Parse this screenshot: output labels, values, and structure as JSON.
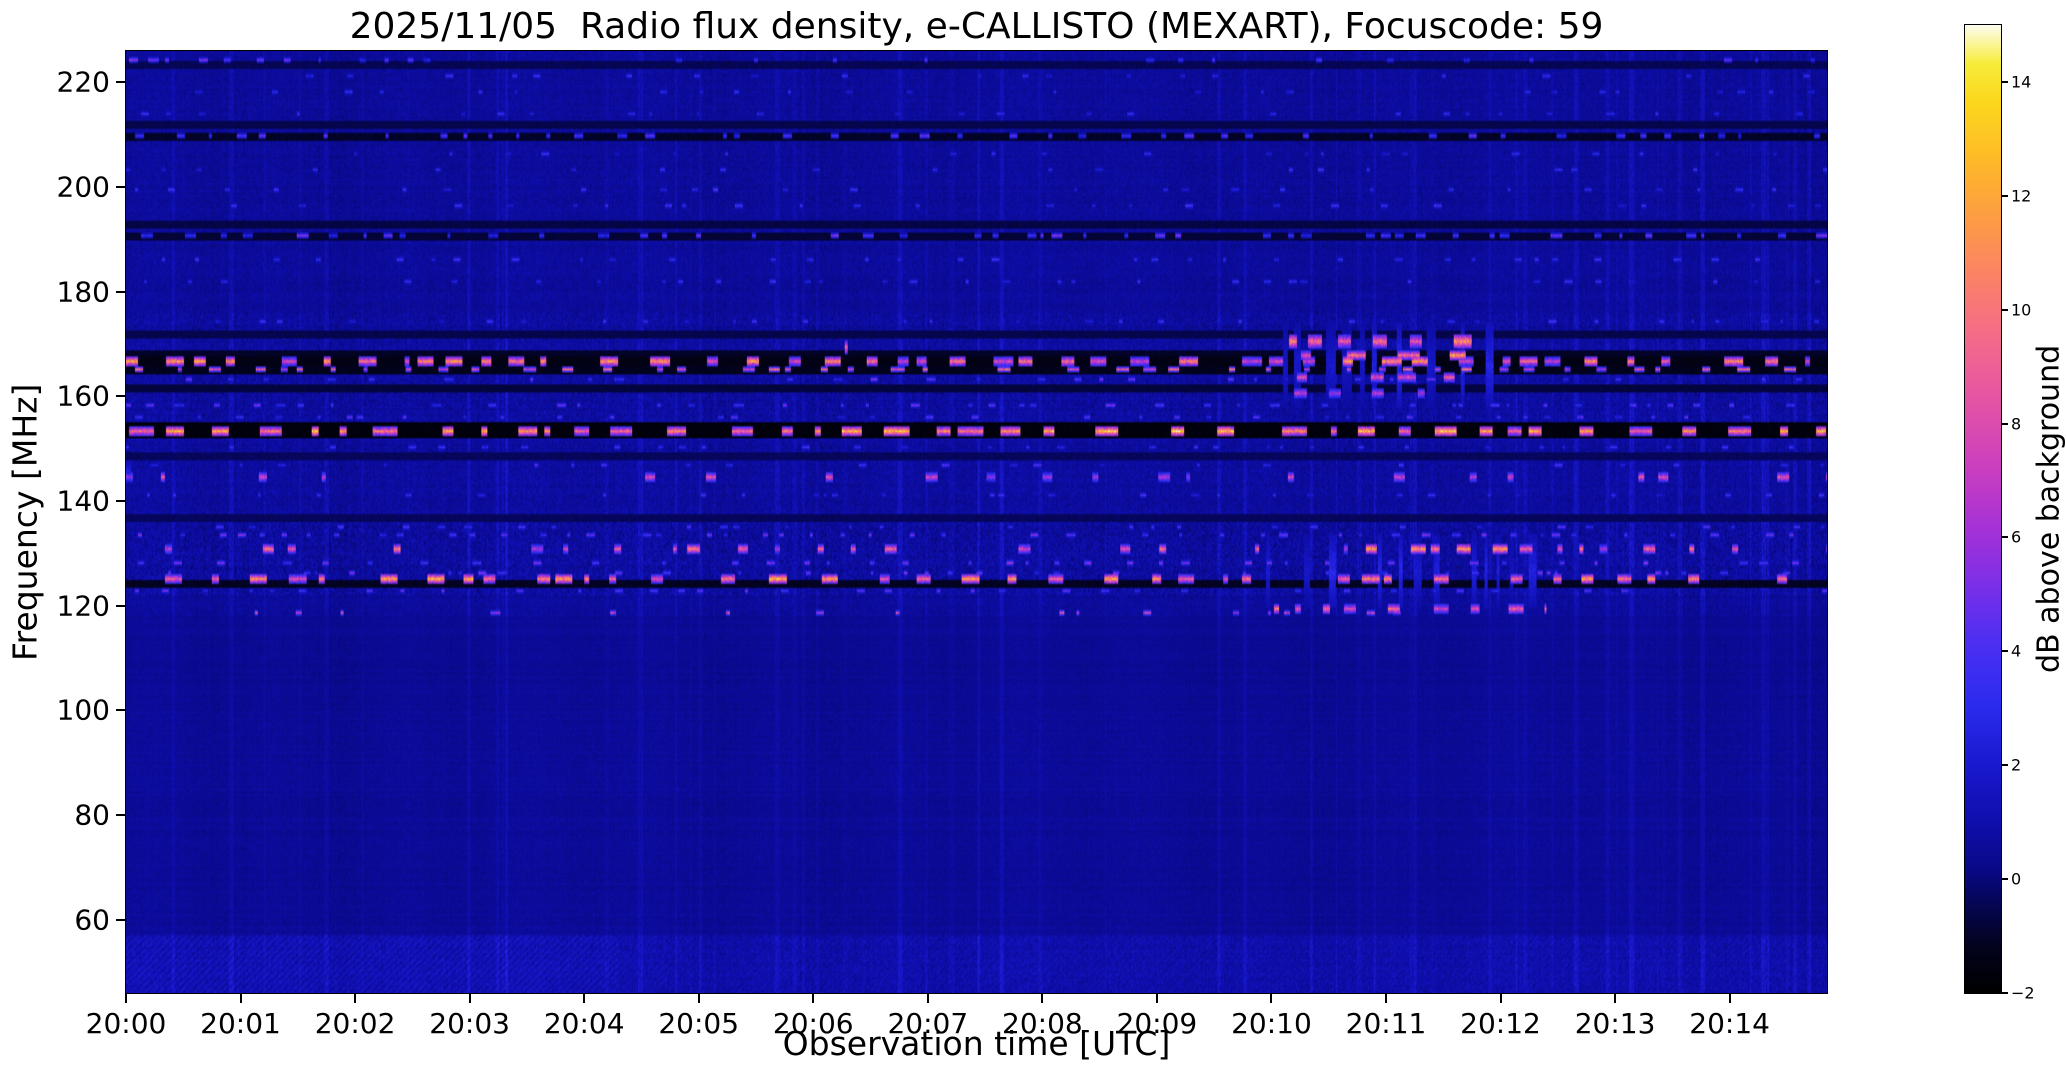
{
  "chart_data": {
    "type": "heatmap",
    "title": "2025/11/05  Radio flux density, e-CALLISTO (MEXART), Focuscode: 59",
    "xlabel": "Observation time [UTC]",
    "ylabel": "Frequency [MHz]",
    "x_range_minutes": [
      0,
      14.85
    ],
    "y_range_mhz": [
      46,
      226
    ],
    "x_ticks": [
      {
        "minute": 0,
        "label": "20:00"
      },
      {
        "minute": 1,
        "label": "20:01"
      },
      {
        "minute": 2,
        "label": "20:02"
      },
      {
        "minute": 3,
        "label": "20:03"
      },
      {
        "minute": 4,
        "label": "20:04"
      },
      {
        "minute": 5,
        "label": "20:05"
      },
      {
        "minute": 6,
        "label": "20:06"
      },
      {
        "minute": 7,
        "label": "20:07"
      },
      {
        "minute": 8,
        "label": "20:08"
      },
      {
        "minute": 9,
        "label": "20:09"
      },
      {
        "minute": 10,
        "label": "20:10"
      },
      {
        "minute": 11,
        "label": "20:11"
      },
      {
        "minute": 12,
        "label": "20:12"
      },
      {
        "minute": 13,
        "label": "20:13"
      },
      {
        "minute": 14,
        "label": "20:14"
      }
    ],
    "y_ticks": [
      {
        "mhz": 60,
        "label": "60"
      },
      {
        "mhz": 80,
        "label": "80"
      },
      {
        "mhz": 100,
        "label": "100"
      },
      {
        "mhz": 120,
        "label": "120"
      },
      {
        "mhz": 140,
        "label": "140"
      },
      {
        "mhz": 160,
        "label": "160"
      },
      {
        "mhz": 180,
        "label": "180"
      },
      {
        "mhz": 200,
        "label": "200"
      },
      {
        "mhz": 220,
        "label": "220"
      }
    ],
    "colorbar": {
      "label": "dB above background",
      "range": [
        -2,
        15
      ],
      "ticks": [
        {
          "value": 14,
          "label": "14"
        },
        {
          "value": 12,
          "label": "12"
        },
        {
          "value": 10,
          "label": "10"
        },
        {
          "value": 8,
          "label": "8"
        },
        {
          "value": 6,
          "label": "6"
        },
        {
          "value": 4,
          "label": "4"
        },
        {
          "value": 2,
          "label": "2"
        },
        {
          "value": 0,
          "label": "0"
        },
        {
          "value": -2,
          "label": "−2"
        }
      ],
      "colormap": [
        {
          "v": 0.0,
          "c": "#000000"
        },
        {
          "v": 0.05,
          "c": "#03031f"
        },
        {
          "v": 0.1,
          "c": "#06065e"
        },
        {
          "v": 0.13,
          "c": "#09098a"
        },
        {
          "v": 0.18,
          "c": "#0f0fae"
        },
        {
          "v": 0.24,
          "c": "#1a1ad2"
        },
        {
          "v": 0.3,
          "c": "#2c2cee"
        },
        {
          "v": 0.36,
          "c": "#4b2ff2"
        },
        {
          "v": 0.42,
          "c": "#7a2fe8"
        },
        {
          "v": 0.48,
          "c": "#a531d6"
        },
        {
          "v": 0.54,
          "c": "#c93ec0"
        },
        {
          "v": 0.61,
          "c": "#e453a5"
        },
        {
          "v": 0.68,
          "c": "#f56b88"
        },
        {
          "v": 0.74,
          "c": "#fb8266"
        },
        {
          "v": 0.8,
          "c": "#fd9c44"
        },
        {
          "v": 0.86,
          "c": "#feb928"
        },
        {
          "v": 0.92,
          "c": "#fbd71c"
        },
        {
          "v": 0.96,
          "c": "#f7ec3a"
        },
        {
          "v": 1.0,
          "c": "#fdfdf0"
        }
      ]
    },
    "render": {
      "seed": 20251105,
      "background": {
        "mean": 0.5,
        "noise": 0.42
      },
      "column_streaks": {
        "base": 0.22,
        "cluster_prob": 0.045,
        "cluster_amp": [
          0.35,
          1.1
        ]
      },
      "bands": [
        {
          "f": [
            46,
            57
          ],
          "boost": 0.25,
          "noise": 1.15,
          "streak": 0.9
        },
        {
          "f": [
            57,
            100
          ],
          "boost": -0.05,
          "noise": 0.6,
          "streak": 0.55
        },
        {
          "f": [
            100,
            118
          ],
          "boost": -0.1,
          "noise": 0.5,
          "streak": 0.5
        },
        {
          "f": [
            118,
            122
          ],
          "boost": 0.0,
          "noise": 0.8,
          "streak": 0.8
        },
        {
          "f": [
            122,
            136
          ],
          "boost": 0.12,
          "noise": 1.55,
          "streak": 1.0
        },
        {
          "f": [
            136,
            153
          ],
          "boost": 0.05,
          "noise": 1.05,
          "streak": 1.0
        },
        {
          "f": [
            153,
            176
          ],
          "boost": 0.08,
          "noise": 1.25,
          "streak": 1.0
        },
        {
          "f": [
            176,
            226
          ],
          "boost": 0.0,
          "noise": 0.85,
          "streak": 0.75
        }
      ],
      "bottom_band": {
        "f_max": 57,
        "amp": 0.75,
        "strong_until_min": 4.3,
        "late_level": 0.35
      },
      "dark_lines": [
        {
          "f": 153.6,
          "hw": 1.1,
          "v": -1.8
        },
        {
          "f": 166.9,
          "hw": 0.5,
          "v": -1.6
        },
        {
          "f": 165.3,
          "hw": 0.4,
          "v": -1.4
        },
        {
          "f": 168.4,
          "hw": 0.3,
          "v": -1.2
        },
        {
          "f": 161.8,
          "hw": 0.35,
          "v": -0.9
        },
        {
          "f": 171.9,
          "hw": 0.3,
          "v": -0.7
        },
        {
          "f": 124.3,
          "hw": 0.45,
          "v": -1.3
        },
        {
          "f": 137.0,
          "hw": 0.3,
          "v": -0.5
        },
        {
          "f": 148.9,
          "hw": 0.25,
          "v": -0.5
        },
        {
          "f": 190.8,
          "hw": 0.4,
          "v": -1.0
        },
        {
          "f": 193.2,
          "hw": 0.35,
          "v": -0.8
        },
        {
          "f": 209.8,
          "hw": 0.5,
          "v": -1.2
        },
        {
          "f": 211.9,
          "hw": 0.3,
          "v": -0.7
        },
        {
          "f": 223.4,
          "hw": 0.3,
          "v": -0.6
        }
      ],
      "burst_lines": [
        {
          "f": 153.6,
          "hw": 0.9,
          "density": 0.3,
          "len": [
            6,
            26
          ],
          "amp": [
            8.5,
            13.5
          ]
        },
        {
          "f": 166.9,
          "hw": 0.7,
          "density": 0.28,
          "len": [
            4,
            20
          ],
          "amp": [
            7,
            12
          ]
        },
        {
          "f": 165.4,
          "hw": 0.5,
          "density": 0.18,
          "len": [
            4,
            14
          ],
          "amp": [
            6,
            10
          ]
        },
        {
          "f": 170.8,
          "hw": 1.0,
          "density": 0.55,
          "len": [
            8,
            26
          ],
          "amp": [
            8,
            13
          ],
          "t": [
            10.15,
            11.8
          ]
        },
        {
          "f": 168.2,
          "hw": 0.9,
          "density": 0.5,
          "len": [
            8,
            24
          ],
          "amp": [
            8,
            13
          ],
          "t": [
            10.15,
            11.8
          ]
        },
        {
          "f": 163.8,
          "hw": 0.8,
          "density": 0.45,
          "len": [
            6,
            20
          ],
          "amp": [
            7.5,
            12
          ],
          "t": [
            10.2,
            11.6
          ]
        },
        {
          "f": 160.9,
          "hw": 0.6,
          "density": 0.3,
          "len": [
            5,
            14
          ],
          "amp": [
            6,
            10
          ],
          "t": [
            10.2,
            11.5
          ]
        },
        {
          "f": 166.0,
          "hw": 8.0,
          "density": 0.6,
          "len": [
            4,
            10
          ],
          "amp": [
            1.5,
            3.2
          ],
          "t": [
            10.1,
            12.0
          ]
        },
        {
          "f": 169.5,
          "hw": 1.2,
          "density": 0.9,
          "len": [
            3,
            6
          ],
          "amp": [
            9,
            13
          ],
          "t": [
            6.25,
            6.45
          ]
        },
        {
          "f": 125.2,
          "hw": 0.7,
          "density": 0.1,
          "len": [
            5,
            18
          ],
          "amp": [
            8,
            12.5
          ]
        },
        {
          "f": 131.0,
          "hw": 0.6,
          "density": 0.07,
          "len": [
            4,
            14
          ],
          "amp": [
            6,
            11
          ]
        },
        {
          "f": 131.2,
          "hw": 0.7,
          "density": 0.35,
          "len": [
            6,
            18
          ],
          "amp": [
            8,
            12
          ],
          "t": [
            10.8,
            12.4
          ]
        },
        {
          "f": 127.0,
          "hw": 7.0,
          "density": 0.4,
          "len": [
            3,
            8
          ],
          "amp": [
            1.5,
            3
          ],
          "t": [
            9.9,
            12.4
          ]
        },
        {
          "f": 119.6,
          "hw": 0.6,
          "density": 0.22,
          "len": [
            5,
            16
          ],
          "amp": [
            7,
            11
          ],
          "t": [
            10.0,
            12.4
          ]
        },
        {
          "f": 118.9,
          "hw": 0.5,
          "density": 0.02,
          "len": [
            3,
            10
          ],
          "amp": [
            5,
            9
          ]
        },
        {
          "f": 144.8,
          "hw": 0.6,
          "density": 0.05,
          "len": [
            4,
            12
          ],
          "amp": [
            5.5,
            9
          ]
        },
        {
          "f": 146.0,
          "hw": 2.0,
          "density": 0.8,
          "len": [
            3,
            8
          ],
          "amp": [
            2.5,
            4.5
          ],
          "t": [
            0,
            0.18
          ]
        },
        {
          "f": 128.3,
          "hw": 0.5,
          "density": 0.12,
          "len": [
            3,
            9
          ],
          "amp": [
            3,
            6
          ]
        },
        {
          "f": 133.8,
          "hw": 0.4,
          "density": 0.12,
          "len": [
            3,
            9
          ],
          "amp": [
            2.5,
            5.5
          ]
        },
        {
          "f": 126.6,
          "hw": 0.4,
          "density": 0.1,
          "len": [
            3,
            8
          ],
          "amp": [
            2.5,
            5.5
          ]
        },
        {
          "f": 123.1,
          "hw": 0.4,
          "density": 0.1,
          "len": [
            3,
            8
          ],
          "amp": [
            2.5,
            5
          ]
        },
        {
          "f": 135.3,
          "hw": 0.4,
          "density": 0.08,
          "len": [
            3,
            8
          ],
          "amp": [
            2,
            4.5
          ]
        },
        {
          "f": 158.5,
          "hw": 0.5,
          "density": 0.15,
          "len": [
            3,
            10
          ],
          "amp": [
            2.5,
            5
          ]
        },
        {
          "f": 156.2,
          "hw": 0.4,
          "density": 0.12,
          "len": [
            3,
            8
          ],
          "amp": [
            2,
            4.5
          ]
        },
        {
          "f": 163.5,
          "hw": 0.4,
          "density": 0.1,
          "len": [
            3,
            10
          ],
          "amp": [
            2.5,
            5
          ]
        },
        {
          "f": 174.5,
          "hw": 0.4,
          "density": 0.08,
          "len": [
            3,
            8
          ],
          "amp": [
            2,
            4
          ]
        },
        {
          "f": 141.5,
          "hw": 0.4,
          "density": 0.08,
          "len": [
            3,
            8
          ],
          "amp": [
            2,
            4
          ]
        },
        {
          "f": 147.2,
          "hw": 0.4,
          "density": 0.07,
          "len": [
            3,
            8
          ],
          "amp": [
            2,
            4
          ]
        },
        {
          "f": 150.4,
          "hw": 0.4,
          "density": 0.06,
          "len": [
            3,
            8
          ],
          "amp": [
            2,
            4
          ]
        },
        {
          "f": 191.0,
          "hw": 0.5,
          "density": 0.2,
          "len": [
            3,
            12
          ],
          "amp": [
            2.5,
            5.5
          ]
        },
        {
          "f": 209.9,
          "hw": 0.5,
          "density": 0.16,
          "len": [
            3,
            10
          ],
          "amp": [
            2.5,
            5
          ]
        },
        {
          "f": 199.6,
          "hw": 0.4,
          "density": 0.08,
          "len": [
            3,
            8
          ],
          "amp": [
            2,
            4.5
          ]
        },
        {
          "f": 196.8,
          "hw": 0.4,
          "density": 0.06,
          "len": [
            3,
            8
          ],
          "amp": [
            2,
            4
          ]
        },
        {
          "f": 203.4,
          "hw": 0.4,
          "density": 0.05,
          "len": [
            3,
            8
          ],
          "amp": [
            2,
            4
          ]
        },
        {
          "f": 186.5,
          "hw": 0.4,
          "density": 0.07,
          "len": [
            3,
            8
          ],
          "amp": [
            2,
            4
          ]
        },
        {
          "f": 182.2,
          "hw": 0.4,
          "density": 0.06,
          "len": [
            3,
            8
          ],
          "amp": [
            1.8,
            3.8
          ]
        },
        {
          "f": 218.5,
          "hw": 0.4,
          "density": 0.05,
          "len": [
            3,
            8
          ],
          "amp": [
            1.8,
            3.5
          ]
        },
        {
          "f": 214.2,
          "hw": 0.4,
          "density": 0.05,
          "len": [
            3,
            8
          ],
          "amp": [
            1.8,
            3.5
          ]
        },
        {
          "f": 206.5,
          "hw": 0.4,
          "density": 0.05,
          "len": [
            3,
            8
          ],
          "amp": [
            1.8,
            3.5
          ]
        },
        {
          "f": 221.3,
          "hw": 0.4,
          "density": 0.04,
          "len": [
            3,
            8
          ],
          "amp": [
            1.8,
            3.5
          ]
        },
        {
          "f": 224.4,
          "hw": 0.5,
          "density": 0.5,
          "len": [
            4,
            12
          ],
          "amp": [
            3.5,
            6
          ],
          "t": [
            0,
            1.7
          ]
        },
        {
          "f": 224.4,
          "hw": 0.4,
          "density": 0.06,
          "len": [
            3,
            8
          ],
          "amp": [
            2.5,
            4.5
          ],
          "t": [
            1.7,
            14.85
          ]
        }
      ]
    }
  }
}
